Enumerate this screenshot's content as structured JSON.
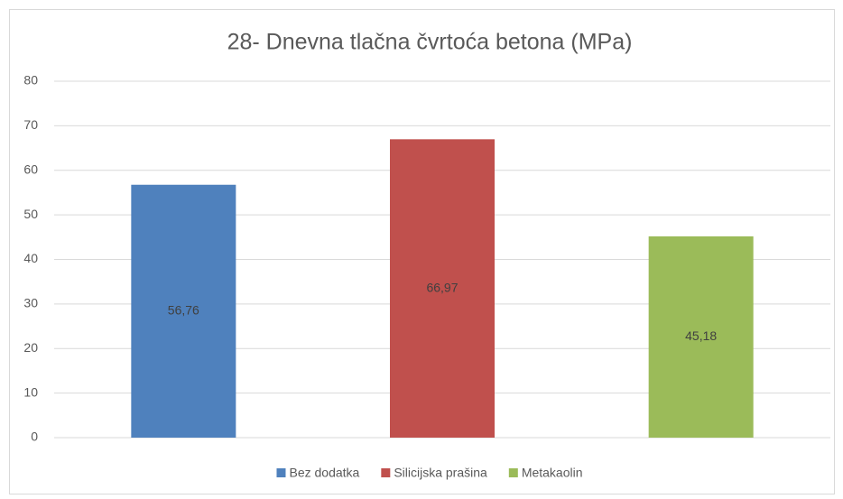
{
  "chart_data": {
    "type": "bar",
    "title": "28- Dnevna tlačna čvrtoća betona (MPa)",
    "series": [
      {
        "name": "Bez dodatka",
        "color": "#4f81bd",
        "values": [
          56.76
        ],
        "value_labels": [
          "56,76"
        ]
      },
      {
        "name": "Silicijska prašina",
        "color": "#c0504d",
        "values": [
          66.97
        ],
        "value_labels": [
          "66,97"
        ]
      },
      {
        "name": "Metakaolin",
        "color": "#9bbb59",
        "values": [
          45.18
        ],
        "value_labels": [
          "45,18"
        ]
      }
    ],
    "ylim": [
      0,
      80
    ],
    "yticks": [
      0,
      10,
      20,
      30,
      40,
      50,
      60,
      70,
      80
    ],
    "grid": true,
    "legend": "bottom"
  }
}
